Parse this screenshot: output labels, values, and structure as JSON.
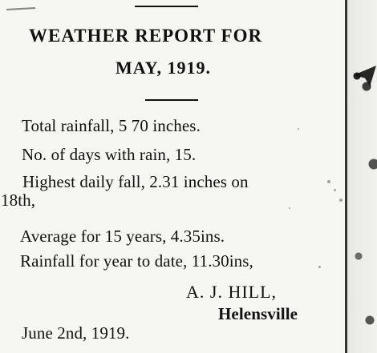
{
  "report": {
    "title_line_1": "WEATHER REPORT FOR",
    "title_line_2": "MAY, 1919.",
    "lines": [
      "Total rainfall, 5 70 inches.",
      "No. of days with rain, 15.",
      "Highest daily fall, 2.31 inches on",
      "18th,",
      "Average for 15 years, 4.35ins.",
      "Rainfall for year to date, 11.30ins,"
    ],
    "signature": {
      "name": "A. J. HILL,",
      "place": "Helensville"
    },
    "date": "June 2nd, 1919."
  }
}
